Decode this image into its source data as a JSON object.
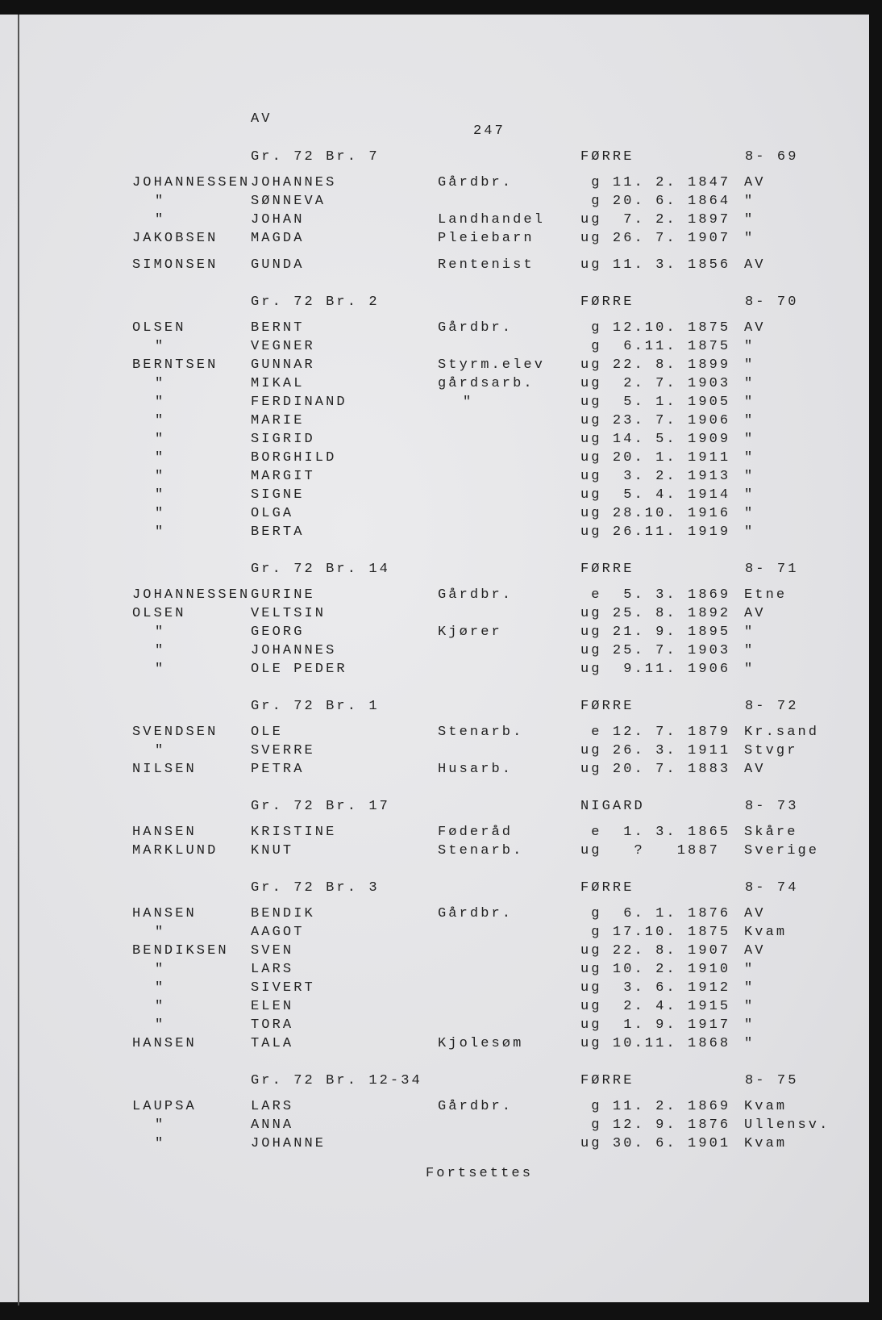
{
  "page": {
    "top_label": "AV",
    "page_number": "247",
    "footer": "Fortsettes"
  },
  "sections": [
    {
      "gr": "Gr. 72 Br. 7",
      "farm": "FØRRE",
      "number": "8- 69",
      "rows": [
        [
          "JOHANNESSEN",
          "JOHANNES",
          "Gårdbr.",
          " g 11. 2. 1847",
          "AV"
        ],
        [
          "\"",
          "SØNNEVA",
          "",
          " g 20. 6. 1864",
          "\""
        ],
        [
          "\"",
          "JOHAN",
          "Landhandel",
          "ug  7. 2. 1897",
          "\""
        ],
        [
          "JAKOBSEN",
          "MAGDA",
          "Pleiebarn",
          "ug 26. 7. 1907",
          "\""
        ],
        [
          "SIMONSEN",
          "GUNDA",
          "Rentenist",
          "ug 11. 3. 1856",
          "AV"
        ]
      ]
    },
    {
      "gr": "Gr. 72 Br. 2",
      "farm": "FØRRE",
      "number": "8- 70",
      "rows": [
        [
          "OLSEN",
          "BERNT",
          "Gårdbr.",
          " g 12.10. 1875",
          "AV"
        ],
        [
          "\"",
          "VEGNER",
          "",
          " g  6.11. 1875",
          "\""
        ],
        [
          "BERNTSEN",
          "GUNNAR",
          "Styrm.elev",
          "ug 22. 8. 1899",
          "\""
        ],
        [
          "\"",
          "MIKAL",
          "gårdsarb.",
          "ug  2. 7. 1903",
          "\""
        ],
        [
          "\"",
          "FERDINAND",
          "\"",
          "ug  5. 1. 1905",
          "\""
        ],
        [
          "\"",
          "MARIE",
          "",
          "ug 23. 7. 1906",
          "\""
        ],
        [
          "\"",
          "SIGRID",
          "",
          "ug 14. 5. 1909",
          "\""
        ],
        [
          "\"",
          "BORGHILD",
          "",
          "ug 20. 1. 1911",
          "\""
        ],
        [
          "\"",
          "MARGIT",
          "",
          "ug  3. 2. 1913",
          "\""
        ],
        [
          "\"",
          "SIGNE",
          "",
          "ug  5. 4. 1914",
          "\""
        ],
        [
          "\"",
          "OLGA",
          "",
          "ug 28.10. 1916",
          "\""
        ],
        [
          "\"",
          "BERTA",
          "",
          "ug 26.11. 1919",
          "\""
        ]
      ]
    },
    {
      "gr": "Gr. 72 Br. 14",
      "farm": "FØRRE",
      "number": "8- 71",
      "rows": [
        [
          "JOHANNESSEN",
          "GURINE",
          "Gårdbr.",
          " e  5. 3. 1869",
          "Etne"
        ],
        [
          "OLSEN",
          "VELTSIN",
          "",
          "ug 25. 8. 1892",
          "AV"
        ],
        [
          "\"",
          "GEORG",
          "Kjører",
          "ug 21. 9. 1895",
          "\""
        ],
        [
          "\"",
          "JOHANNES",
          "",
          "ug 25. 7. 1903",
          "\""
        ],
        [
          "\"",
          "OLE PEDER",
          "",
          "ug  9.11. 1906",
          "\""
        ]
      ]
    },
    {
      "gr": "Gr. 72 Br. 1",
      "farm": "FØRRE",
      "number": "8- 72",
      "rows": [
        [
          "SVENDSEN",
          "OLE",
          "Stenarb.",
          " e 12. 7. 1879",
          "Kr.sand"
        ],
        [
          "\"",
          "SVERRE",
          "",
          "ug 26. 3. 1911",
          "Stvgr"
        ],
        [
          "NILSEN",
          "PETRA",
          "Husarb.",
          "ug 20. 7. 1883",
          "AV"
        ]
      ]
    },
    {
      "gr": "Gr. 72 Br. 17",
      "farm": "NIGARD",
      "number": "8- 73",
      "rows": [
        [
          "HANSEN",
          "KRISTINE",
          "Føderåd",
          " e  1. 3. 1865",
          "Skåre"
        ],
        [
          "MARKLUND",
          "KNUT",
          "Stenarb.",
          "ug   ?   1887",
          "Sverige"
        ]
      ]
    },
    {
      "gr": "Gr. 72 Br. 3",
      "farm": "FØRRE",
      "number": "8- 74",
      "rows": [
        [
          "HANSEN",
          "BENDIK",
          "Gårdbr.",
          " g  6. 1. 1876",
          "AV"
        ],
        [
          "\"",
          "AAGOT",
          "",
          " g 17.10. 1875",
          "Kvam"
        ],
        [
          "BENDIKSEN",
          "SVEN",
          "",
          "ug 22. 8. 1907",
          "AV"
        ],
        [
          "\"",
          "LARS",
          "",
          "ug 10. 2. 1910",
          "\""
        ],
        [
          "\"",
          "SIVERT",
          "",
          "ug  3. 6. 1912",
          "\""
        ],
        [
          "\"",
          "ELEN",
          "",
          "ug  2. 4. 1915",
          "\""
        ],
        [
          "\"",
          "TORA",
          "",
          "ug  1. 9. 1917",
          "\""
        ],
        [
          "HANSEN",
          "TALA",
          "Kjolesøm",
          "ug 10.11. 1868",
          "\""
        ]
      ]
    },
    {
      "gr": "Gr. 72 Br. 12-34",
      "farm": "FØRRE",
      "number": "8- 75",
      "rows": [
        [
          "LAUPSA",
          "LARS",
          "Gårdbr.",
          " g 11. 2. 1869",
          "Kvam"
        ],
        [
          "\"",
          "ANNA",
          "",
          " g 12. 9. 1876",
          "Ullensv."
        ],
        [
          "\"",
          "JOHANNE",
          "",
          "ug 30. 6. 1901",
          "Kvam"
        ]
      ]
    }
  ]
}
